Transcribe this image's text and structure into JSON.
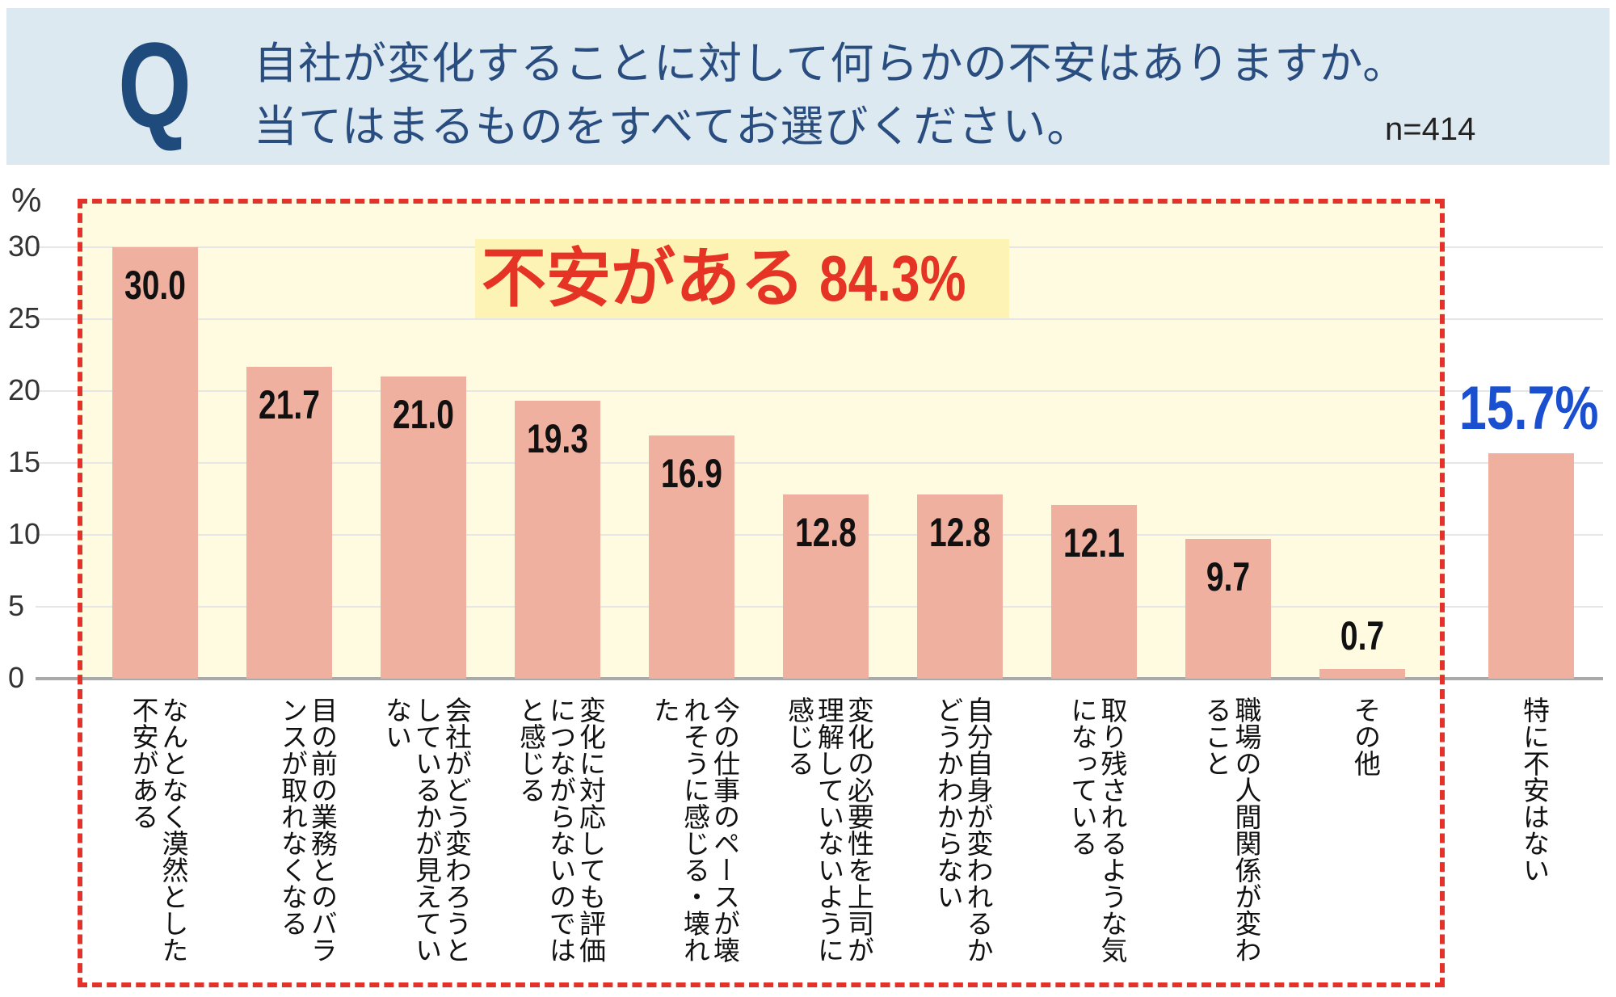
{
  "header": {
    "q_mark": "Q",
    "question_line1": "自社が変化することに対して何らかの不安はありますか。",
    "question_line2": "当てはまるものをすべてお選びください。",
    "sample_size": "n=414"
  },
  "callouts": {
    "anxious_label": "不安がある",
    "anxious_pct": "84.3%",
    "not_anxious_pct": "15.7%"
  },
  "colors": {
    "bar": "#f0b0a0",
    "highlight_bg": "#fefbe1",
    "dashed_border": "#e3322a",
    "callout_text": "#e53325",
    "none_text": "#1a4fd0",
    "header_bg": "#dce9f1",
    "header_text": "#2a4d7f"
  },
  "chart_data": {
    "type": "bar",
    "title": "自社が変化することに対して何らかの不安はありますか。当てはまるものをすべてお選びください。",
    "subtitle": "n=414",
    "xlabel": "",
    "ylabel": "%",
    "ylim": [
      0,
      30
    ],
    "yticks": [
      0,
      5,
      10,
      15,
      20,
      25,
      30
    ],
    "grid": true,
    "legend": null,
    "categories": [
      "なんとなく漠然とした不安がある",
      "目の前の業務とのバランスが取れなくなる",
      "会社がどう変わろうとしているかが見えていない",
      "変化に対応しても評価につながらないのではと感じる",
      "今の仕事のペースが壊れそうに感じる・壊れた",
      "変化の必要性を上司が理解していないように感じる",
      "自分自身が変われるかどうかわからない",
      "取り残されるような気になっている",
      "職場の人間関係が変わること",
      "その他",
      "特に不安はない"
    ],
    "values": [
      30.0,
      21.7,
      21.0,
      19.3,
      16.9,
      12.8,
      12.8,
      12.1,
      9.7,
      0.7,
      15.7
    ],
    "value_labels": [
      "30.0",
      "21.7",
      "21.0",
      "19.3",
      "16.9",
      "12.8",
      "12.8",
      "12.1",
      "9.7",
      "0.7",
      "15.7%"
    ],
    "annotations": [
      {
        "text": "不安がある 84.3%",
        "group": "first 10 categories (dashed box)"
      },
      {
        "text": "15.7%",
        "group": "特に不安はない"
      }
    ]
  },
  "axis": {
    "unit": "%",
    "ticks": [
      "30",
      "25",
      "20",
      "15",
      "10",
      "5",
      "0"
    ]
  }
}
